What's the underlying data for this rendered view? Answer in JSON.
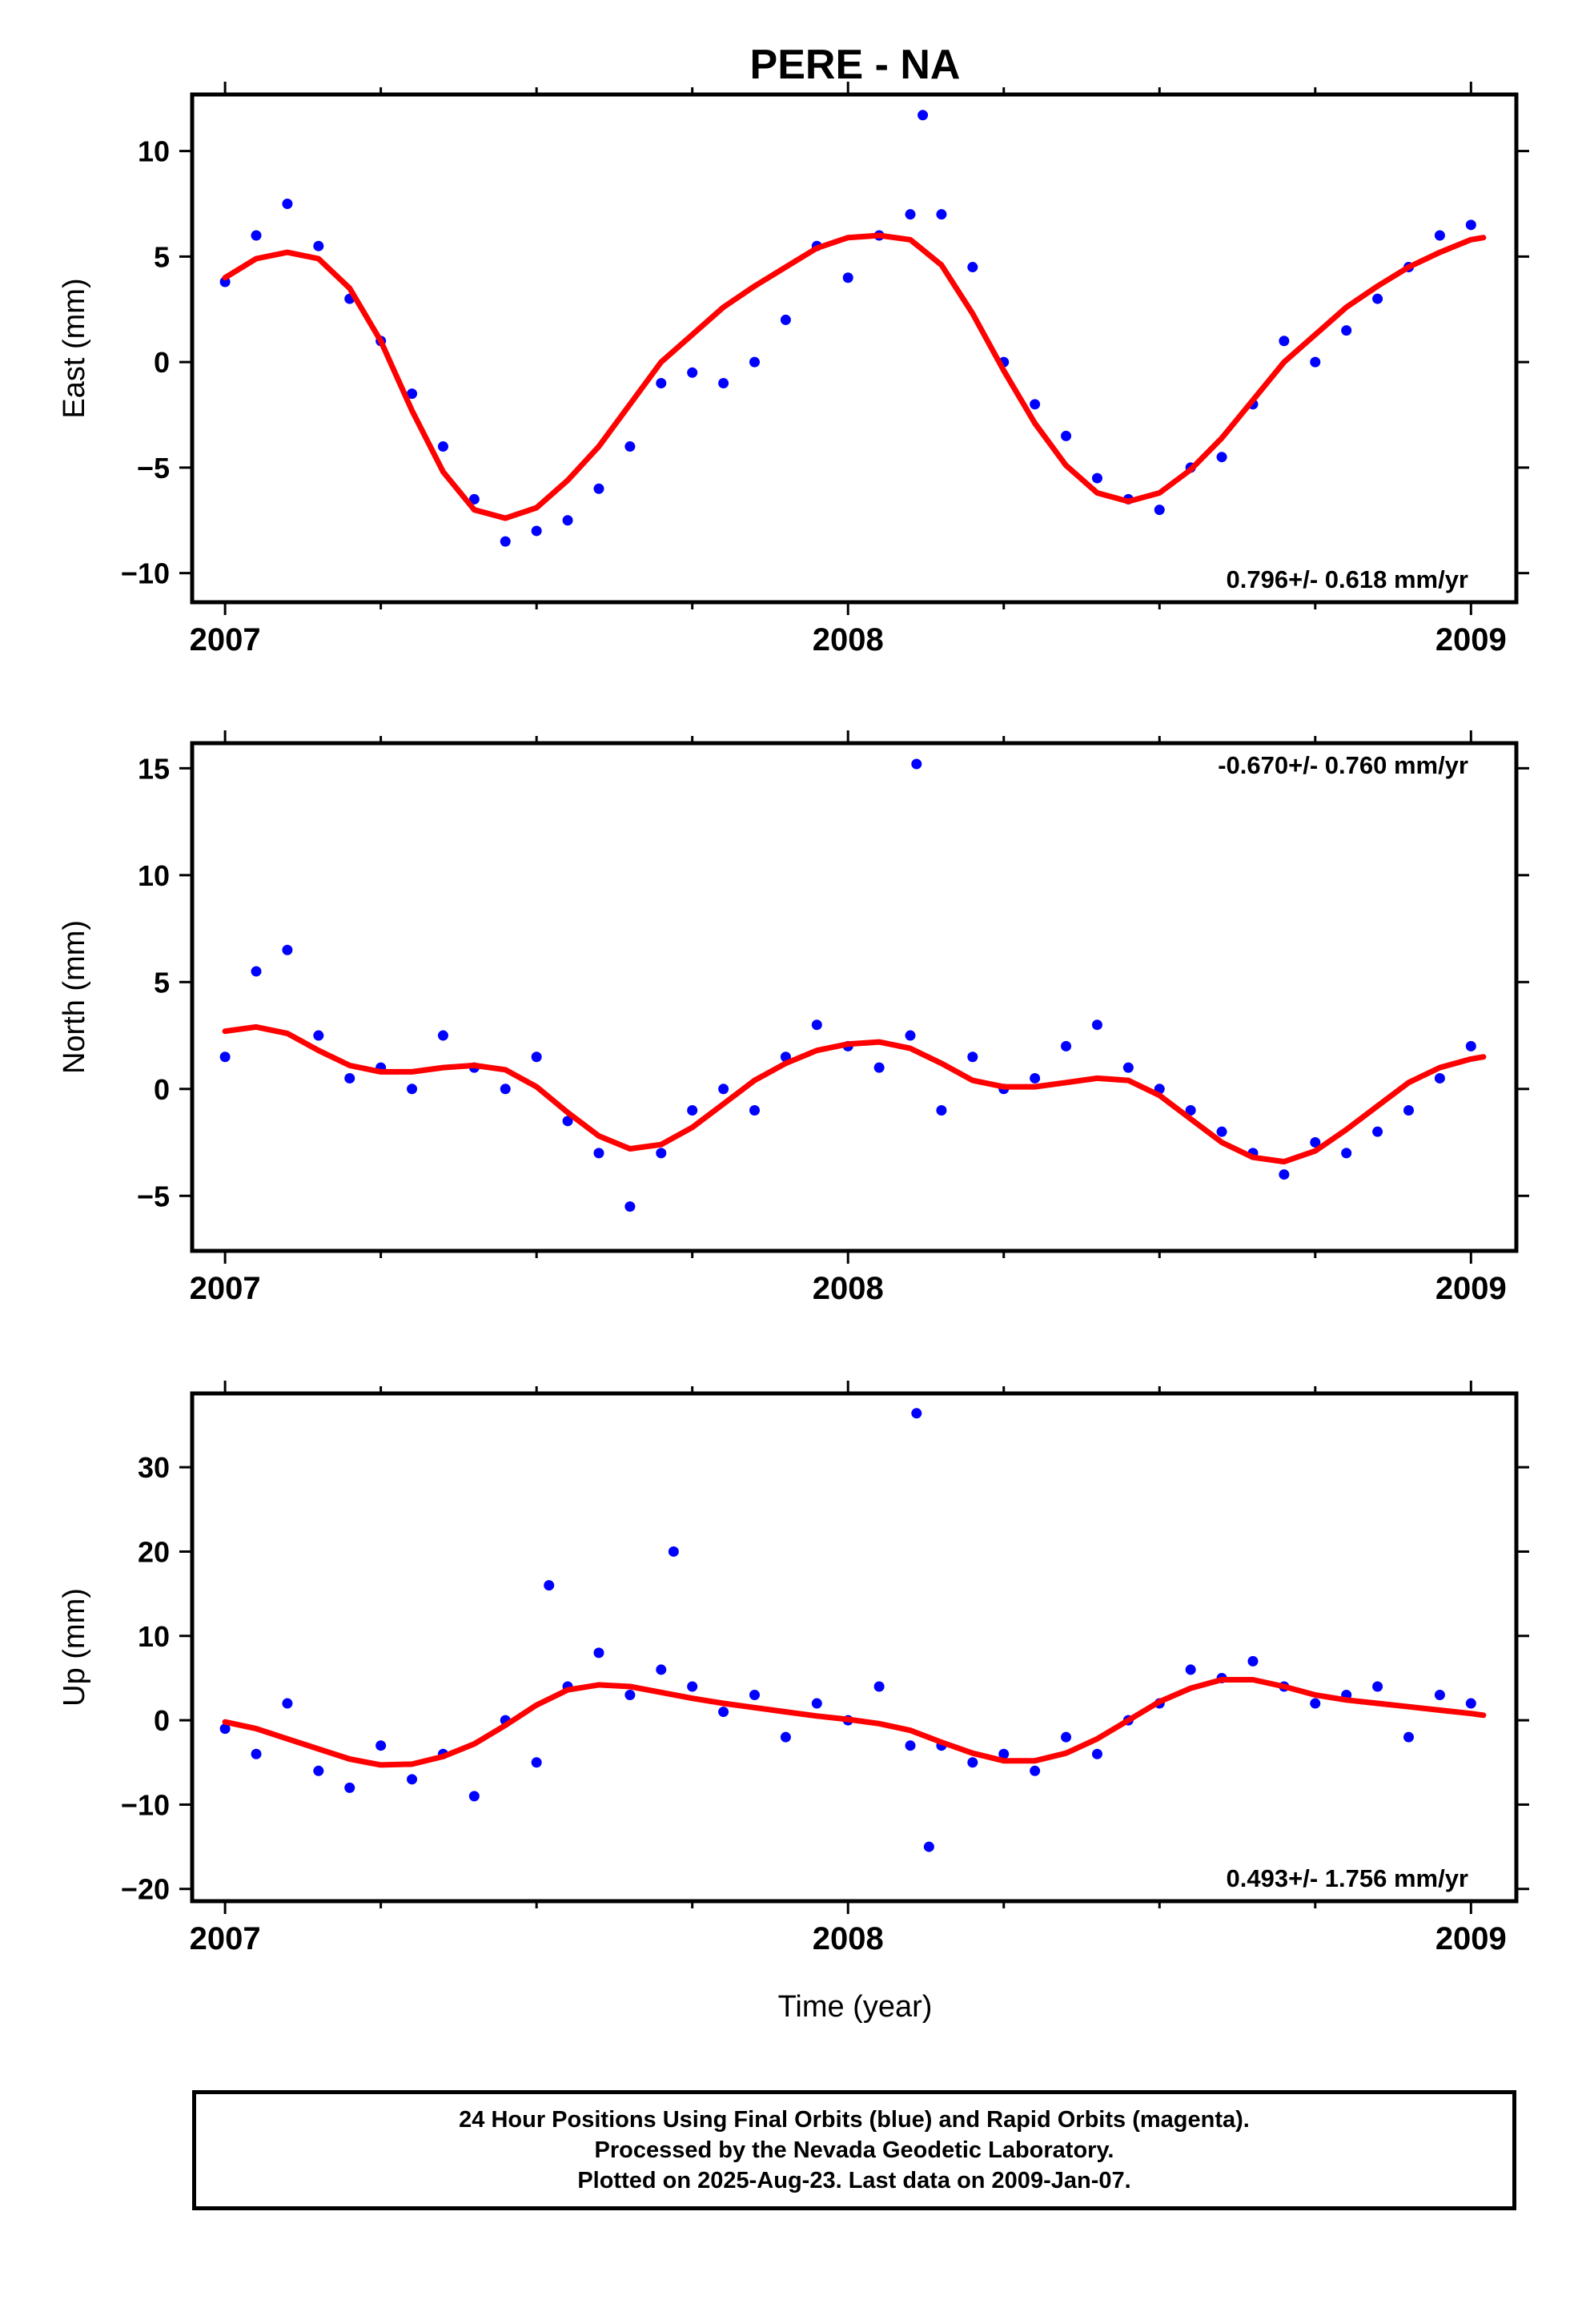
{
  "title": "PERE - NA",
  "xlabel": "Time (year)",
  "footer": {
    "line1": "24 Hour Positions Using Final Orbits (blue) and Rapid Orbits (magenta).",
    "line2": "Processed by the Nevada Geodetic Laboratory.",
    "line3": "Plotted on 2025-Aug-23. Last data on 2009-Jan-07."
  },
  "colors": {
    "points": "#0000ff",
    "fit": "#ff0000",
    "axes": "#000000"
  },
  "chart_data": [
    {
      "type": "scatter",
      "title": "PERE - NA",
      "ylabel": "East (mm)",
      "xlabel": "",
      "xlim": [
        2006.96,
        2009.06
      ],
      "ylim": [
        -11.0,
        12.3
      ],
      "xticks": [
        2007,
        2008,
        2009
      ],
      "xticklabels": [
        "2007",
        "2008",
        "2009"
      ],
      "yticks": [
        -10,
        -5,
        0,
        5,
        10
      ],
      "yticklabels": [
        "−10",
        "−5",
        "0",
        "5",
        "10"
      ],
      "rate_label": "0.796+/- 0.618 mm/yr",
      "rate_label_position": "bottom-right",
      "series": [
        {
          "style": "points",
          "x": [
            2007.0,
            2007.05,
            2007.1,
            2007.15,
            2007.2,
            2007.25,
            2007.3,
            2007.35,
            2007.4,
            2007.45,
            2007.5,
            2007.55,
            2007.6,
            2007.65,
            2007.7,
            2007.75,
            2007.8,
            2007.85,
            2007.9,
            2007.95,
            2008.0,
            2008.05,
            2008.1,
            2008.12,
            2008.15,
            2008.2,
            2008.25,
            2008.3,
            2008.35,
            2008.4,
            2008.45,
            2008.5,
            2008.55,
            2008.6,
            2008.65,
            2008.7,
            2008.75,
            2008.8,
            2008.85,
            2008.9,
            2008.95,
            2009.0
          ],
          "y": [
            3.8,
            6.0,
            7.5,
            5.5,
            3.0,
            1.0,
            -1.5,
            -4.0,
            -6.5,
            -8.5,
            -8.0,
            -7.5,
            -6.0,
            -4.0,
            -1.0,
            -0.5,
            -1.0,
            0.0,
            2.0,
            5.5,
            4.0,
            6.0,
            7.0,
            11.7,
            7.0,
            4.5,
            0.0,
            -2.0,
            -3.5,
            -5.5,
            -6.5,
            -7.0,
            -5.0,
            -4.5,
            -2.0,
            1.0,
            0.0,
            1.5,
            3.0,
            4.5,
            6.0,
            6.5
          ]
        },
        {
          "style": "line",
          "x": [
            2007.0,
            2007.05,
            2007.1,
            2007.15,
            2007.2,
            2007.25,
            2007.3,
            2007.35,
            2007.4,
            2007.45,
            2007.5,
            2007.55,
            2007.6,
            2007.65,
            2007.7,
            2007.75,
            2007.8,
            2007.85,
            2007.9,
            2007.95,
            2008.0,
            2008.05,
            2008.1,
            2008.15,
            2008.2,
            2008.25,
            2008.3,
            2008.35,
            2008.4,
            2008.45,
            2008.5,
            2008.55,
            2008.6,
            2008.65,
            2008.7,
            2008.75,
            2008.8,
            2008.85,
            2008.9,
            2008.95,
            2009.0,
            2009.02
          ],
          "y": [
            4.0,
            4.9,
            5.2,
            4.9,
            3.5,
            1.0,
            -2.3,
            -5.2,
            -7.0,
            -7.4,
            -6.9,
            -5.6,
            -4.0,
            -2.0,
            0.0,
            1.3,
            2.6,
            3.6,
            4.5,
            5.4,
            5.9,
            6.0,
            5.8,
            4.6,
            2.3,
            -0.4,
            -2.9,
            -4.9,
            -6.2,
            -6.6,
            -6.2,
            -5.1,
            -3.6,
            -1.8,
            0.0,
            1.3,
            2.6,
            3.6,
            4.5,
            5.2,
            5.8,
            5.9
          ]
        }
      ]
    },
    {
      "type": "scatter",
      "ylabel": "North (mm)",
      "xlabel": "",
      "xlim": [
        2006.96,
        2009.06
      ],
      "ylim": [
        -7.2,
        15.8
      ],
      "xticks": [
        2007,
        2008,
        2009
      ],
      "xticklabels": [
        "2007",
        "2008",
        "2009"
      ],
      "yticks": [
        -5,
        0,
        5,
        10,
        15
      ],
      "yticklabels": [
        "−5",
        "0",
        "5",
        "10",
        "15"
      ],
      "rate_label": "-0.670+/- 0.760 mm/yr",
      "rate_label_position": "top-right",
      "series": [
        {
          "style": "points",
          "x": [
            2007.0,
            2007.05,
            2007.1,
            2007.15,
            2007.2,
            2007.25,
            2007.3,
            2007.35,
            2007.4,
            2007.45,
            2007.5,
            2007.55,
            2007.6,
            2007.65,
            2007.7,
            2007.75,
            2007.8,
            2007.85,
            2007.9,
            2007.95,
            2008.0,
            2008.05,
            2008.1,
            2008.11,
            2008.15,
            2008.2,
            2008.25,
            2008.3,
            2008.35,
            2008.4,
            2008.45,
            2008.5,
            2008.55,
            2008.6,
            2008.65,
            2008.7,
            2008.75,
            2008.8,
            2008.85,
            2008.9,
            2008.95,
            2009.0
          ],
          "y": [
            1.5,
            5.5,
            6.5,
            2.5,
            0.5,
            1.0,
            0.0,
            2.5,
            1.0,
            0.0,
            1.5,
            -1.5,
            -3.0,
            -5.5,
            -3.0,
            -1.0,
            0.0,
            -1.0,
            1.5,
            3.0,
            2.0,
            1.0,
            2.5,
            15.2,
            -1.0,
            1.5,
            0.0,
            0.5,
            2.0,
            3.0,
            1.0,
            0.0,
            -1.0,
            -2.0,
            -3.0,
            -4.0,
            -2.5,
            -3.0,
            -2.0,
            -1.0,
            0.5,
            2.0
          ]
        },
        {
          "style": "line",
          "x": [
            2007.0,
            2007.05,
            2007.1,
            2007.15,
            2007.2,
            2007.25,
            2007.3,
            2007.35,
            2007.4,
            2007.45,
            2007.5,
            2007.55,
            2007.6,
            2007.65,
            2007.7,
            2007.75,
            2007.8,
            2007.85,
            2007.9,
            2007.95,
            2008.0,
            2008.05,
            2008.1,
            2008.15,
            2008.2,
            2008.25,
            2008.3,
            2008.35,
            2008.4,
            2008.45,
            2008.5,
            2008.55,
            2008.6,
            2008.65,
            2008.7,
            2008.75,
            2008.8,
            2008.85,
            2008.9,
            2008.95,
            2009.0,
            2009.02
          ],
          "y": [
            2.7,
            2.9,
            2.6,
            1.8,
            1.1,
            0.8,
            0.8,
            1.0,
            1.1,
            0.9,
            0.1,
            -1.1,
            -2.2,
            -2.8,
            -2.6,
            -1.8,
            -0.7,
            0.4,
            1.2,
            1.8,
            2.1,
            2.2,
            1.9,
            1.2,
            0.4,
            0.1,
            0.1,
            0.3,
            0.5,
            0.4,
            -0.3,
            -1.4,
            -2.5,
            -3.2,
            -3.4,
            -2.9,
            -1.9,
            -0.8,
            0.3,
            1.0,
            1.4,
            1.5
          ]
        }
      ]
    },
    {
      "type": "scatter",
      "ylabel": "Up (mm)",
      "xlabel": "Time (year)",
      "xlim": [
        2006.96,
        2009.06
      ],
      "ylim": [
        -20.5,
        37.8
      ],
      "xticks": [
        2007,
        2008,
        2009
      ],
      "xticklabels": [
        "2007",
        "2008",
        "2009"
      ],
      "yticks": [
        -20,
        -10,
        0,
        10,
        20,
        30
      ],
      "yticklabels": [
        "−20",
        "−10",
        "0",
        "10",
        "20",
        "30"
      ],
      "rate_label": "0.493+/- 1.756 mm/yr",
      "rate_label_position": "bottom-right",
      "series": [
        {
          "style": "points",
          "x": [
            2007.0,
            2007.05,
            2007.1,
            2007.15,
            2007.2,
            2007.25,
            2007.3,
            2007.35,
            2007.4,
            2007.45,
            2007.5,
            2007.52,
            2007.55,
            2007.6,
            2007.65,
            2007.7,
            2007.72,
            2007.75,
            2007.8,
            2007.85,
            2007.9,
            2007.95,
            2008.0,
            2008.05,
            2008.1,
            2008.11,
            2008.13,
            2008.15,
            2008.2,
            2008.25,
            2008.3,
            2008.35,
            2008.4,
            2008.45,
            2008.5,
            2008.55,
            2008.6,
            2008.65,
            2008.7,
            2008.75,
            2008.8,
            2008.85,
            2008.9,
            2008.95,
            2009.0
          ],
          "y": [
            -1.0,
            -4.0,
            2.0,
            -6.0,
            -8.0,
            -3.0,
            -7.0,
            -4.0,
            -9.0,
            0.0,
            -5.0,
            16.0,
            4.0,
            8.0,
            3.0,
            6.0,
            20.0,
            4.0,
            1.0,
            3.0,
            -2.0,
            2.0,
            0.0,
            4.0,
            -3.0,
            36.4,
            -15.0,
            -3.0,
            -5.0,
            -4.0,
            -6.0,
            -2.0,
            -4.0,
            0.0,
            2.0,
            6.0,
            5.0,
            7.0,
            4.0,
            2.0,
            3.0,
            4.0,
            -2.0,
            3.0,
            2.0
          ]
        },
        {
          "style": "line",
          "x": [
            2007.0,
            2007.05,
            2007.1,
            2007.15,
            2007.2,
            2007.25,
            2007.3,
            2007.35,
            2007.4,
            2007.45,
            2007.5,
            2007.55,
            2007.6,
            2007.65,
            2007.7,
            2007.75,
            2007.8,
            2007.85,
            2007.9,
            2007.95,
            2008.0,
            2008.05,
            2008.1,
            2008.15,
            2008.2,
            2008.25,
            2008.3,
            2008.35,
            2008.4,
            2008.45,
            2008.5,
            2008.55,
            2008.6,
            2008.65,
            2008.7,
            2008.75,
            2008.8,
            2008.85,
            2008.9,
            2008.95,
            2009.0,
            2009.02
          ],
          "y": [
            -0.2,
            -1.0,
            -2.2,
            -3.4,
            -4.6,
            -5.3,
            -5.2,
            -4.3,
            -2.8,
            -0.6,
            1.8,
            3.6,
            4.2,
            4.0,
            3.3,
            2.6,
            2.0,
            1.5,
            1.0,
            0.5,
            0.1,
            -0.4,
            -1.2,
            -2.6,
            -3.9,
            -4.8,
            -4.8,
            -3.9,
            -2.2,
            0.0,
            2.2,
            3.8,
            4.8,
            4.8,
            4.0,
            3.0,
            2.4,
            2.0,
            1.6,
            1.2,
            0.8,
            0.6
          ]
        }
      ]
    }
  ]
}
